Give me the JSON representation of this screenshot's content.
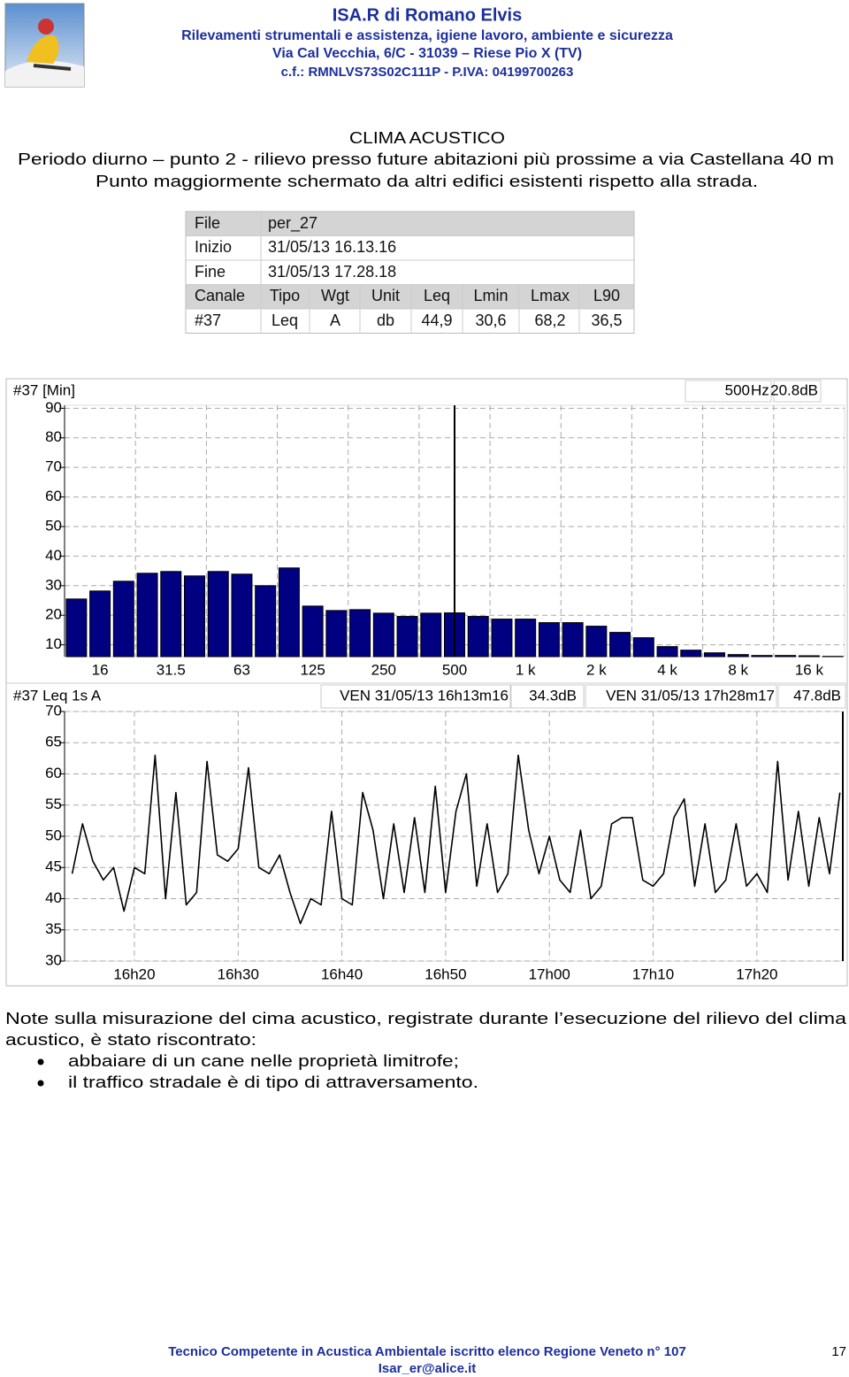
{
  "header": {
    "company": "ISA.R di Romano Elvis",
    "line1": "Rilevamenti strumentali e assistenza, igiene lavoro, ambiente e sicurezza",
    "line2": "Via Cal Vecchia, 6/C - 31039 – Riese Pio X (TV)",
    "line3": "c.f.: RMNLVS73S02C111P - P.IVA: 04199700263"
  },
  "title": {
    "heading": "CLIMA ACUSTICO",
    "line1": "Periodo diurno – punto 2 - rilievo presso future abitazioni più prossime a via Castellana 40 m",
    "line2": "Punto maggiormente schermato da altri edifici esistenti rispetto alla strada."
  },
  "table": {
    "rows": [
      [
        "File",
        "per_27"
      ],
      [
        "Inizio",
        "31/05/13 16.13.16"
      ],
      [
        "Fine",
        "31/05/13 17.28.18"
      ],
      [
        "Canale",
        "Tipo",
        "Wgt",
        "Unit",
        "Leq",
        "Lmin",
        "Lmax",
        "L90"
      ],
      [
        "#37",
        "Leq",
        "A",
        "db",
        "44,9",
        "30,6",
        "68,2",
        "36,5"
      ]
    ]
  },
  "chart_data": [
    {
      "type": "bar",
      "title": "#37 [Min]",
      "cursor": {
        "frequency": "500",
        "unit": "Hz",
        "level": "20.8dB"
      },
      "categories": [
        null,
        "16",
        null,
        null,
        "31.5",
        null,
        null,
        "63",
        null,
        null,
        "125",
        null,
        null,
        "250",
        null,
        null,
        "500",
        null,
        null,
        "1 k",
        null,
        null,
        "2 k",
        null,
        null,
        "4 k",
        null,
        null,
        "8 k",
        null,
        null,
        "16 k",
        null
      ],
      "values": [
        25.5,
        28.2,
        31.5,
        34.2,
        34.8,
        33.3,
        34.8,
        33.9,
        30,
        36,
        23.1,
        21.6,
        21.9,
        20.7,
        19.6,
        20.7,
        20.8,
        19.6,
        18.7,
        18.7,
        17.5,
        17.5,
        16.3,
        14.2,
        12.4,
        9.4,
        8.2,
        7.3,
        6.7,
        6.4,
        6.4,
        6.3,
        6.1
      ],
      "color": "#000080",
      "ylim": [
        6,
        91
      ],
      "yticks": [
        10,
        20,
        30,
        40,
        50,
        60,
        70,
        80,
        90
      ],
      "grid": true
    },
    {
      "type": "line",
      "title": "#37  Leq 1s  A",
      "cursor_start": "VEN 31/05/13 16h13m16",
      "level_start": "34.3dB",
      "cursor_end": "VEN 31/05/13 17h28m17",
      "level_end": "47.8dB",
      "x": [
        974,
        975,
        976,
        977,
        978,
        979,
        980,
        981,
        982,
        983,
        984,
        985,
        986,
        987,
        988,
        989,
        990,
        991,
        992,
        993,
        994,
        995,
        996,
        997,
        998,
        999,
        1000,
        1001,
        1002,
        1003,
        1004,
        1005,
        1006,
        1007,
        1008,
        1009,
        1010,
        1011,
        1012,
        1013,
        1014,
        1015,
        1016,
        1017,
        1018,
        1019,
        1020,
        1021,
        1022,
        1023,
        1024,
        1025,
        1026,
        1027,
        1028,
        1029,
        1030,
        1031,
        1032,
        1033,
        1034,
        1035,
        1036,
        1037,
        1038,
        1039,
        1040,
        1041,
        1042,
        1043,
        1044,
        1045,
        1046,
        1047,
        1048
      ],
      "values": [
        44,
        52,
        46,
        43,
        45,
        38,
        45,
        44,
        63,
        40,
        57,
        39,
        41,
        62,
        47,
        46,
        48,
        61,
        45,
        44,
        47,
        41,
        36,
        40,
        39,
        54,
        40,
        39,
        57,
        51,
        40,
        52,
        41,
        53,
        41,
        58,
        41,
        54,
        60,
        42,
        52,
        41,
        44,
        63,
        51,
        44,
        50,
        43,
        41,
        51,
        40,
        42,
        52,
        53,
        53,
        43,
        42,
        44,
        53,
        56,
        42,
        52,
        41,
        43,
        52,
        42,
        44,
        41,
        62,
        43,
        54,
        42,
        53,
        44,
        57
      ],
      "color": "#000000",
      "xlim": [
        973.27,
        1048.28
      ],
      "xticks": [
        {
          "value": 980,
          "label": "16h20"
        },
        {
          "value": 990,
          "label": "16h30"
        },
        {
          "value": 1000,
          "label": "16h40"
        },
        {
          "value": 1010,
          "label": "16h50"
        },
        {
          "value": 1020,
          "label": "17h00"
        },
        {
          "value": 1030,
          "label": "17h10"
        },
        {
          "value": 1040,
          "label": "17h20"
        }
      ],
      "ylim": [
        30,
        70
      ],
      "yticks": [
        30,
        35,
        40,
        45,
        50,
        55,
        60,
        65,
        70
      ],
      "grid": true
    }
  ],
  "notes": {
    "lines": [
      "Note sulla misurazione del cima acustico, registrate durante l’esecuzione del rilievo del clima",
      "acustico, è stato riscontrato:"
    ],
    "bullets": [
      "abbaiare di un cane nelle proprietà limitrofe;",
      "il traffico stradale è di tipo di attraversamento."
    ]
  },
  "footer": {
    "line1": "Tecnico Competente in Acustica Ambientale iscritto elenco Regione Veneto n° 107",
    "line2": "Isar_er@alice.it",
    "page": "17"
  }
}
